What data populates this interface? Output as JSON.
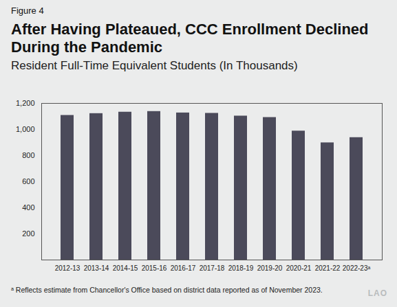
{
  "chart_data": {
    "type": "bar",
    "figure_label": "Figure 4",
    "title": "After Having Plateaued, CCC Enrollment Declined During the Pandemic",
    "subtitle": "Resident Full-Time Equivalent Students (In Thousands)",
    "categories": [
      "2012-13",
      "2013-14",
      "2014-15",
      "2015-16",
      "2016-17",
      "2017-18",
      "2018-19",
      "2019-20",
      "2020-21",
      "2021-22",
      "2022-23ᵃ"
    ],
    "values": [
      1108,
      1122,
      1133,
      1138,
      1127,
      1124,
      1103,
      1092,
      988,
      898,
      938
    ],
    "color": "#4b4a5a",
    "ylim": [
      0,
      1200
    ],
    "yticks": [
      200,
      400,
      600,
      800,
      {
        "value": 1000,
        "label": "1,000"
      },
      {
        "value": 1200,
        "label": "1,200"
      }
    ],
    "grid": false,
    "footnote": "ᵃ Reflects estimate from Chancellor's Office based on district data reported as of November 2023.",
    "source_logo": "LAO"
  }
}
